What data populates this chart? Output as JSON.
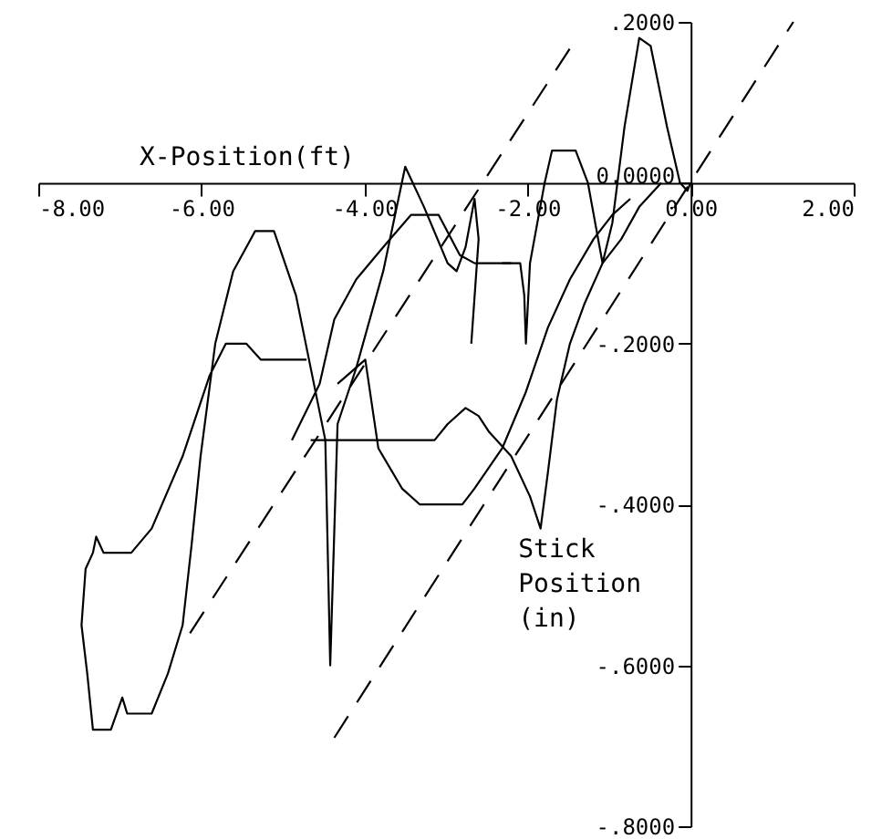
{
  "chart_data": {
    "type": "line",
    "xlabel": "X-Position(ft)",
    "ylabel": "Stick Position (in)",
    "xlim": [
      -8,
      2
    ],
    "ylim": [
      -0.8,
      0.2
    ],
    "xticks": [
      {
        "value": -8,
        "label": "-8.00"
      },
      {
        "value": -6,
        "label": "-6.00"
      },
      {
        "value": -4,
        "label": "-4.00"
      },
      {
        "value": -2,
        "label": "-2.00"
      },
      {
        "value": 0,
        "label": "0.00"
      },
      {
        "value": 2,
        "label": "2.00"
      }
    ],
    "yticks": [
      {
        "value": 0.2,
        "label": ".2000"
      },
      {
        "value": 0,
        "label": "0.0000"
      },
      {
        "value": -0.2,
        "label": "-.2000"
      },
      {
        "value": -0.4,
        "label": "-.4000"
      },
      {
        "value": -0.6,
        "label": "-.6000"
      },
      {
        "value": -0.8,
        "label": "-.8000"
      }
    ],
    "series": [
      {
        "color": "#000000",
        "x": [
          -4.71,
          -5.27,
          -5.45,
          -5.7,
          -5.9,
          -6.23,
          -6.61,
          -6.86,
          -7.2,
          -7.29,
          -7.33,
          -7.42,
          -7.47,
          -7.4,
          -7.33,
          -7.11,
          -6.97,
          -6.91,
          -6.61,
          -6.41,
          -6.23,
          -6.12,
          -6.01,
          -5.83,
          -5.61,
          -5.34,
          -5.11,
          -4.84,
          -4.62,
          -4.48,
          -4.42,
          -4.33,
          -4.1,
          -3.77,
          -3.5,
          -3.27,
          -2.98,
          -2.87,
          -2.76,
          -2.65,
          -2.6,
          -2.69
        ],
        "values": [
          -0.22,
          -0.22,
          -0.2,
          -0.2,
          -0.24,
          -0.34,
          -0.43,
          -0.46,
          -0.46,
          -0.44,
          -0.46,
          -0.48,
          -0.55,
          -0.61,
          -0.68,
          -0.68,
          -0.64,
          -0.66,
          -0.66,
          -0.61,
          -0.55,
          -0.45,
          -0.34,
          -0.2,
          -0.11,
          -0.06,
          -0.06,
          -0.14,
          -0.25,
          -0.32,
          -0.6,
          -0.3,
          -0.23,
          -0.11,
          0.02,
          -0.03,
          -0.1,
          -0.11,
          -0.08,
          -0.02,
          -0.07,
          -0.2
        ]
      },
      {
        "color": "#000000",
        "x": [
          -2.31,
          -2.09,
          -2.04,
          -2.02,
          -1.97,
          -1.79,
          -1.7,
          -1.41,
          -1.26,
          -1.08,
          -0.96,
          -0.81,
          -0.63,
          -0.49,
          -0.29,
          -0.13,
          -0.04,
          0
        ],
        "values": [
          -0.1,
          -0.1,
          -0.14,
          -0.2,
          -0.1,
          0,
          0.04,
          0.04,
          0,
          -0.1,
          -0.05,
          0.07,
          0.18,
          0.17,
          0.07,
          0,
          -0.01,
          0
        ]
      },
      {
        "color": "#000000",
        "x": [
          -4.89,
          -4.55,
          -4.37,
          -4.1,
          -3.77,
          -3.43,
          -3.09,
          -2.83,
          -2.65,
          -2.2
        ],
        "values": [
          -0.32,
          -0.25,
          -0.17,
          -0.12,
          -0.08,
          -0.04,
          -0.04,
          -0.09,
          -0.1,
          -0.1
        ]
      },
      {
        "color": "#000000",
        "x": [
          -4.66,
          -3.14,
          -2.98,
          -2.76,
          -2.6,
          -2.47,
          -2.2,
          -1.97,
          -1.84,
          -1.75,
          -1.64,
          -1.48,
          -1.3,
          -1.08,
          -0.85,
          -0.63,
          -0.36
        ],
        "values": [
          -0.32,
          -0.32,
          -0.3,
          -0.28,
          -0.29,
          -0.31,
          -0.34,
          -0.39,
          -0.43,
          -0.36,
          -0.27,
          -0.2,
          -0.15,
          -0.1,
          -0.07,
          -0.03,
          0
        ]
      },
      {
        "color": "#000000",
        "x": [
          -4.33,
          -3.99,
          -3.83,
          -3.54,
          -3.32,
          -2.8,
          -2.65,
          -2.31,
          -2.02,
          -1.75,
          -1.48,
          -1.19,
          -0.96,
          -0.74
        ],
        "values": [
          -0.25,
          -0.22,
          -0.33,
          -0.38,
          -0.4,
          -0.4,
          -0.38,
          -0.33,
          -0.26,
          -0.18,
          -0.12,
          -0.07,
          -0.04,
          -0.02
        ]
      },
      {
        "color": "#000000",
        "line_style": "dashed",
        "x": [
          -6.14,
          -1.46
        ],
        "values": [
          -0.56,
          0.17
        ]
      },
      {
        "color": "#000000",
        "line_style": "dashed",
        "x": [
          -4.37,
          1.26
        ],
        "values": [
          -0.69,
          0.2
        ]
      }
    ]
  }
}
